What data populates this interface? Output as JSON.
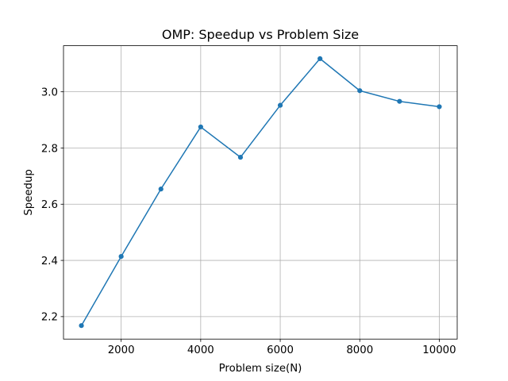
{
  "chart_data": {
    "type": "line",
    "title": "OMP: Speedup vs Problem Size",
    "xlabel": "Problem size(N)",
    "ylabel": "Speedup",
    "x": [
      1000,
      2000,
      3000,
      4000,
      5000,
      6000,
      7000,
      8000,
      9000,
      10000
    ],
    "series": [
      {
        "values": [
          2.168,
          2.414,
          2.654,
          2.875,
          2.767,
          2.952,
          3.118,
          3.004,
          2.966,
          2.947
        ],
        "color": "#1f77b4",
        "marker": "circle"
      }
    ],
    "xlim": [
      550,
      10450
    ],
    "ylim": [
      2.12,
      3.164
    ],
    "xticks": [
      2000,
      4000,
      6000,
      8000,
      10000
    ],
    "xtick_labels": [
      "2000",
      "4000",
      "6000",
      "8000",
      "10000"
    ],
    "yticks": [
      2.2,
      2.4,
      2.6,
      2.8,
      3.0
    ],
    "ytick_labels": [
      "2.2",
      "2.4",
      "2.6",
      "2.8",
      "3.0"
    ],
    "grid": true,
    "legend": "none"
  }
}
